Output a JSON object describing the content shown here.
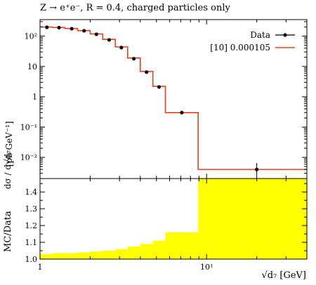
{
  "title": "Z → e⁺e⁻, R = 0.4, charged particles only",
  "top_ylabel_frac": "dσ / d√d₇",
  "top_ylabel_unit": "[pb GeV⁻¹]",
  "bottom_ylabel": "MC/Data",
  "xlabel": "√d₇ [GeV]",
  "legend": {
    "data_label": "Data",
    "mc_label": "[10] 0.000105"
  },
  "colors": {
    "data": "#000000",
    "mc": "#e8401c",
    "band": "#ffff00"
  },
  "chart_data": [
    {
      "type": "line",
      "panel": "top",
      "scale": "log-log",
      "xlim": [
        1,
        40
      ],
      "ylim": [
        0.002,
        350
      ],
      "y_ticks": [
        "10²",
        "10",
        "1",
        "10⁻¹",
        "10⁻²"
      ],
      "y_tick_values": [
        100,
        10,
        1,
        0.1,
        0.01
      ],
      "bin_edges": [
        1.0,
        1.19,
        1.41,
        1.68,
        2.0,
        2.38,
        2.83,
        3.36,
        4.0,
        4.76,
        5.66,
        8.9,
        40.0
      ],
      "series": [
        {
          "name": "Data",
          "style": "points",
          "x": [
            1.1,
            1.3,
            1.55,
            1.84,
            2.18,
            2.6,
            3.08,
            3.66,
            4.36,
            5.18,
            7.1,
            20.0
          ],
          "y": [
            195,
            190,
            175,
            150,
            115,
            75,
            42,
            18,
            6.5,
            2.1,
            0.3,
            0.004
          ],
          "yerr_low": [
            0,
            0,
            0,
            0,
            0,
            0,
            0,
            0,
            0,
            0,
            0.03,
            0.0015
          ],
          "yerr_high": [
            0,
            0,
            0,
            0,
            0,
            0,
            0,
            0,
            0,
            0,
            0.03,
            0.0025
          ]
        },
        {
          "name": "[10] 0.000105",
          "style": "step",
          "y": [
            200,
            192,
            178,
            152,
            118,
            78,
            44,
            19,
            6.8,
            2.2,
            0.3,
            0.004
          ]
        }
      ]
    },
    {
      "type": "area",
      "panel": "bottom",
      "scale": "log-x",
      "xlim": [
        1,
        40
      ],
      "ylim": [
        1.0,
        1.48
      ],
      "y_ticks": [
        "1.0",
        "1.1",
        "1.2",
        "1.3",
        "1.4"
      ],
      "y_tick_values": [
        1.0,
        1.1,
        1.2,
        1.3,
        1.4
      ],
      "x_ticks": [
        "1",
        "10¹"
      ],
      "x_tick_values": [
        1,
        10
      ],
      "band_bin_edges": [
        1.0,
        1.19,
        1.41,
        1.68,
        2.0,
        2.38,
        2.83,
        3.36,
        4.0,
        4.76,
        5.66,
        8.9,
        40.0
      ],
      "band_upper": [
        1.03,
        1.035,
        1.035,
        1.04,
        1.045,
        1.05,
        1.06,
        1.075,
        1.09,
        1.11,
        1.16,
        1.48
      ],
      "band_lower": [
        1.0,
        1.0,
        1.0,
        1.0,
        1.0,
        1.0,
        1.0,
        1.0,
        1.0,
        1.0,
        1.0,
        1.0
      ],
      "reference_line": 1.0
    }
  ]
}
